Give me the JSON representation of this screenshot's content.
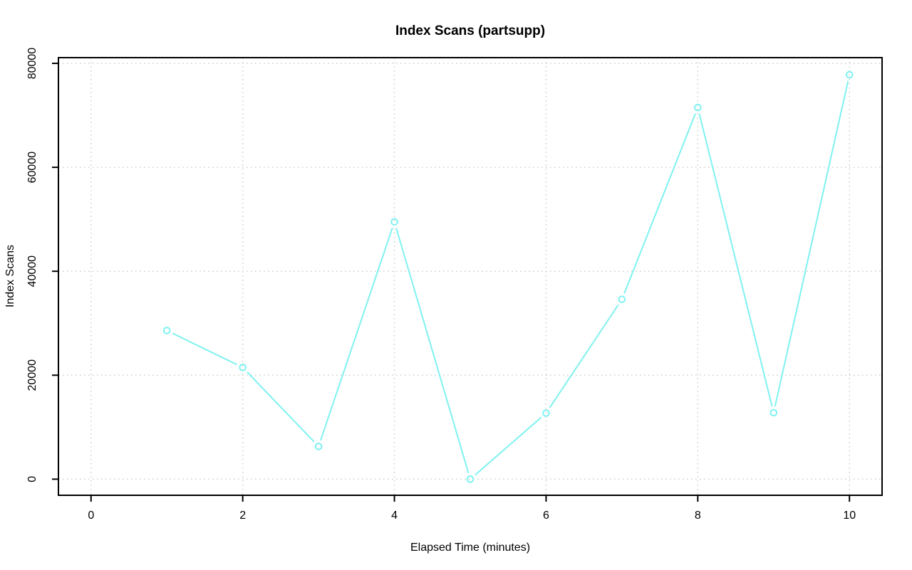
{
  "chart_data": {
    "type": "line",
    "title": "Index Scans (partsupp)",
    "xlabel": "Elapsed Time (minutes)",
    "ylabel": "Index Scans",
    "x": [
      1,
      2,
      3,
      4,
      5,
      6,
      7,
      8,
      9,
      10
    ],
    "series": [
      {
        "name": "index_scans",
        "values": [
          28600,
          21500,
          6300,
          49500,
          0,
          12700,
          34600,
          71500,
          12800,
          77800
        ]
      }
    ],
    "x_ticks": [
      0,
      2,
      4,
      6,
      8,
      10
    ],
    "y_ticks": [
      0,
      20000,
      40000,
      60000,
      80000
    ],
    "xlim": [
      -0.43,
      10.43
    ],
    "ylim": [
      -3100,
      81100
    ],
    "grid": "dotted",
    "legend": "none",
    "marker": "open-circle",
    "line_color": "#7FF2F0",
    "grid_color": "#D3D3D3",
    "axis_color": "#000000",
    "background": "#FFFFFF"
  }
}
